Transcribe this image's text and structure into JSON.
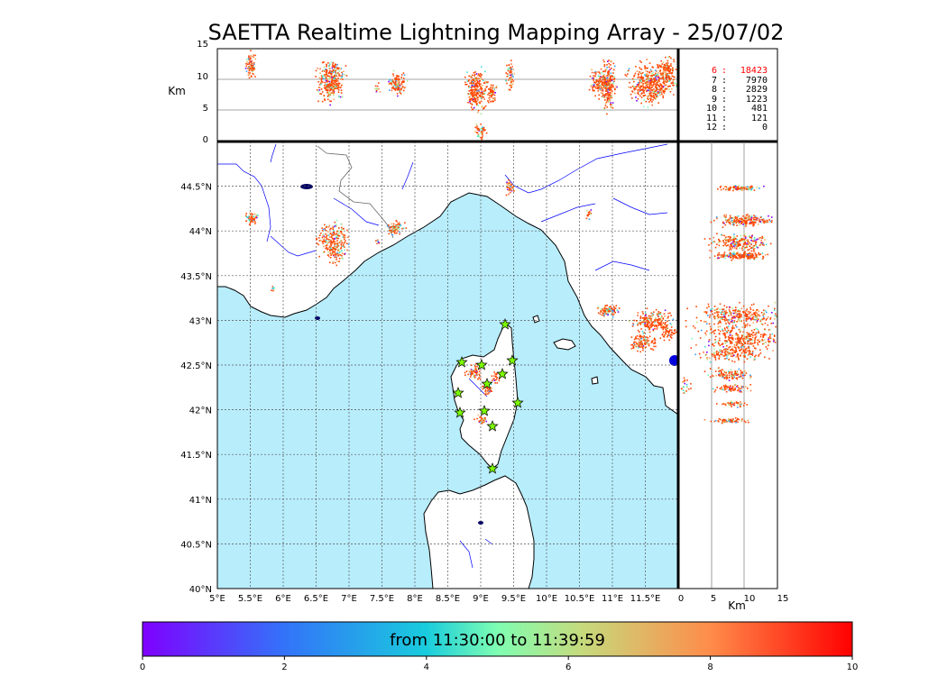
{
  "title": "SAETTA Realtime Lightning Mapping Array - 25/07/02",
  "top_panel": {
    "ylabel": "Km",
    "yticks": [
      "15",
      "10",
      "5",
      "0"
    ]
  },
  "right_panel": {
    "xlabel": "Km",
    "xticks": [
      "0",
      "5",
      "10",
      "15"
    ]
  },
  "map": {
    "lon_ticks": [
      "5°E",
      "5.5°E",
      "6°E",
      "6.5°E",
      "7°E",
      "7.5°E",
      "8°E",
      "8.5°E",
      "9°E",
      "9.5°E",
      "10°E",
      "10.5°E",
      "11°E",
      "11.5°E"
    ],
    "lat_ticks": [
      "44.5°N",
      "44°N",
      "43.5°N",
      "43°N",
      "42.5°N",
      "42°N",
      "41.5°N",
      "41°N",
      "40.5°N",
      "40°N"
    ],
    "lon_range": [
      5,
      12
    ],
    "lat_range": [
      40,
      45
    ],
    "sea_color": "#b8edfc",
    "land_color": "#ffffff",
    "station_marker": "star-icon",
    "station_color": "#7cfc00"
  },
  "station_counts": [
    {
      "n": "6",
      "count": "18423",
      "color": "#ff0000"
    },
    {
      "n": "7",
      "count": "7970",
      "color": "#000000"
    },
    {
      "n": "8",
      "count": "2829",
      "color": "#000000"
    },
    {
      "n": "9",
      "count": "1223",
      "color": "#000000"
    },
    {
      "n": "10",
      "count": "481",
      "color": "#000000"
    },
    {
      "n": "11",
      "count": "121",
      "color": "#000000"
    },
    {
      "n": "12",
      "count": "0",
      "color": "#000000"
    }
  ],
  "colorbar": {
    "label": "from 11:30:00 to 11:39:59",
    "ticks": [
      "0",
      "2",
      "4",
      "6",
      "8",
      "10"
    ],
    "colormap": "rainbow"
  }
}
